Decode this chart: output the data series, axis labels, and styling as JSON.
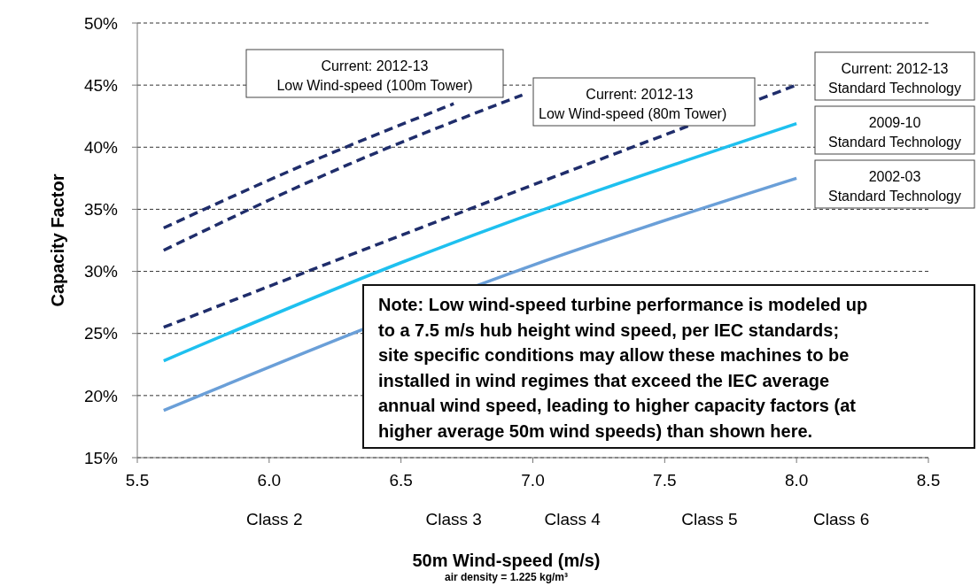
{
  "chart_data": {
    "type": "line",
    "xlabel": "50m Wind-speed (m/s)",
    "ylabel": "Capacity Factor",
    "xlim": [
      5.5,
      8.5
    ],
    "xticks": [
      {
        "value": 5.5,
        "label": "5.5"
      },
      {
        "value": 6,
        "label": "6.0"
      },
      {
        "value": 6.5,
        "label": "6.5"
      },
      {
        "value": 7,
        "label": "7.0"
      },
      {
        "value": 7.5,
        "label": "7.5"
      },
      {
        "value": 8,
        "label": "8.0"
      },
      {
        "value": 8.5,
        "label": "8.5"
      }
    ],
    "ylim": [
      15,
      50
    ],
    "yticks": [
      {
        "value": 15,
        "label": "15%"
      },
      {
        "value": 20,
        "label": "20%"
      },
      {
        "value": 25,
        "label": "25%"
      },
      {
        "value": 30,
        "label": "30%"
      },
      {
        "value": 35,
        "label": "35%"
      },
      {
        "value": 40,
        "label": "40%"
      },
      {
        "value": 45,
        "label": "45%"
      },
      {
        "value": 50,
        "label": "50%"
      }
    ],
    "grid": "y",
    "series": [
      {
        "name": "Current: 2012-13\nLow Wind-speed (100m Tower)",
        "color": "#1f2d6b",
        "line_style": "dashed",
        "x": [
          5.6,
          6.2,
          6.7
        ],
        "values": [
          33.5,
          39.2,
          43.5
        ]
      },
      {
        "name": "Current: 2012-13\nLow Wind-speed (80m Tower)",
        "color": "#1f2d6b",
        "line_style": "dashed",
        "x": [
          5.6,
          6.3,
          6.96
        ],
        "values": [
          31.7,
          38.6,
          44.2
        ]
      },
      {
        "name": "Current: 2012-13\nStandard Technology",
        "color": "#1f2d6b",
        "line_style": "dashed",
        "x": [
          5.6,
          6.5,
          8.0
        ],
        "values": [
          25.5,
          32.9,
          45
        ]
      },
      {
        "name": "2009-10\nStandard Technology",
        "color": "#1ec0ef",
        "line_style": "solid",
        "x": [
          5.6,
          6.5,
          8.0
        ],
        "values": [
          22.8,
          30.7,
          41.9
        ]
      },
      {
        "name": "2002-03\nStandard Technology",
        "color": "#6a9fd8",
        "line_style": "solid",
        "x": [
          5.6,
          7.0,
          8.0
        ],
        "values": [
          18.8,
          30.5,
          37.5
        ]
      }
    ],
    "annotations": [
      "Class 2",
      "Class 3",
      "Class 4",
      "Class 5",
      "Class 6",
      "Note: Low wind-speed turbine performance is modeled up\nto a 7.5 m/s hub height wind speed, per IEC standards;\nsite specific conditions may allow these machines to be\ninstalled in wind regimes that exceed the IEC average\nannual wind speed, leading to higher capacity factors (at\nhigher average 50m wind speeds) than shown here.",
      "air density = 1.225 kg/m³"
    ]
  }
}
